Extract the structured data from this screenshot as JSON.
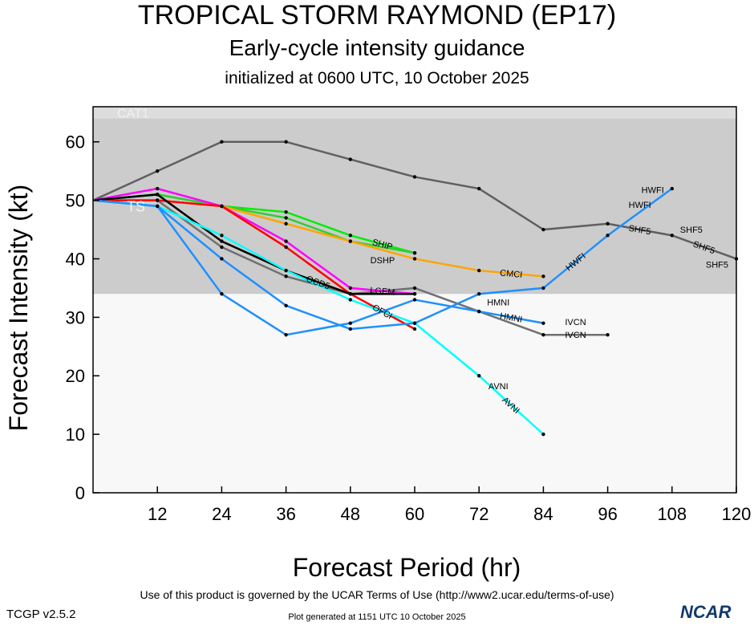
{
  "header": {
    "title": "TROPICAL STORM RAYMOND (EP17)",
    "subtitle": "Early-cycle intensity guidance",
    "init": "initialized at 0600 UTC, 10 October 2025"
  },
  "footer": {
    "terms": "Use of this product is governed by the UCAR Terms of Use (http://www2.ucar.edu/terms-of-use)",
    "generated": "Plot generated at 1151 UTC   10 October 2025",
    "version": "TCGP v2.5.2",
    "logo": "NCAR"
  },
  "chart_data": {
    "type": "line",
    "xlabel": "Forecast Period (hr)",
    "ylabel": "Forecast Intensity (kt)",
    "xlim": [
      0,
      120
    ],
    "ylim": [
      0,
      66
    ],
    "xticks": [
      12,
      24,
      36,
      48,
      60,
      72,
      84,
      96,
      108,
      120
    ],
    "yticks": [
      0,
      10,
      20,
      30,
      40,
      50,
      60
    ],
    "bands": [
      {
        "label": "TS",
        "from": 34,
        "to": 64,
        "color": "#cccccc"
      },
      {
        "label": "CAT1",
        "from": 64,
        "to": 66,
        "color": "#dddddd"
      }
    ],
    "series": [
      {
        "name": "SHF5",
        "color": "#606060",
        "x": [
          0,
          12,
          24,
          36,
          48,
          60,
          72,
          84,
          96,
          108,
          120
        ],
        "y": [
          50,
          55,
          60,
          60,
          57,
          54,
          52,
          45,
          46,
          44,
          40
        ]
      },
      {
        "name": "IVCN",
        "color": "#707070",
        "x": [
          0,
          12,
          24,
          36,
          48,
          60,
          72,
          84,
          96
        ],
        "y": [
          50,
          50,
          42,
          37,
          34,
          35,
          31,
          27,
          27
        ]
      },
      {
        "name": "SHIP",
        "color": "#00ee00",
        "x": [
          0,
          12,
          24,
          36,
          48,
          60
        ],
        "y": [
          50,
          51,
          49,
          48,
          44,
          41
        ]
      },
      {
        "name": "DSHP",
        "color": "#33cc33",
        "x": [
          0,
          12,
          24,
          36,
          48,
          60
        ],
        "y": [
          50,
          51,
          49,
          47,
          43,
          41
        ]
      },
      {
        "name": "CMCI",
        "color": "#ffa500",
        "x": [
          0,
          12,
          24,
          36,
          48,
          60,
          72,
          84
        ],
        "y": [
          50,
          50,
          49,
          46,
          43,
          40,
          38,
          37
        ]
      },
      {
        "name": "LGEM",
        "color": "#ff00ff",
        "x": [
          0,
          12,
          24,
          36,
          48,
          60
        ],
        "y": [
          50,
          52,
          49,
          43,
          35,
          34
        ]
      },
      {
        "name": "OFCI",
        "color": "#ff0000",
        "x": [
          0,
          12,
          24,
          36,
          48,
          60
        ],
        "y": [
          50,
          50,
          49,
          42,
          34,
          28
        ]
      },
      {
        "name": "OCD5",
        "color": "#000000",
        "x": [
          0,
          12,
          24,
          36,
          48,
          60
        ],
        "y": [
          50,
          51,
          43,
          38,
          34,
          34
        ]
      },
      {
        "name": "AVNI",
        "color": "#00ffff",
        "x": [
          0,
          12,
          24,
          36,
          48,
          60,
          72,
          84
        ],
        "y": [
          50,
          49,
          44,
          38,
          33,
          29,
          20,
          10
        ]
      },
      {
        "name": "HWFI",
        "color": "#1e90ff",
        "x": [
          0,
          12,
          24,
          36,
          48,
          60,
          72,
          84,
          96,
          108
        ],
        "y": [
          50,
          49,
          40,
          32,
          28,
          29,
          34,
          35,
          44,
          52
        ]
      },
      {
        "name": "HMNI",
        "color": "#1e90ff",
        "x": [
          0,
          12,
          24,
          36,
          48,
          60,
          72,
          84
        ],
        "y": [
          50,
          49,
          34,
          27,
          29,
          33,
          31,
          29
        ]
      }
    ]
  }
}
